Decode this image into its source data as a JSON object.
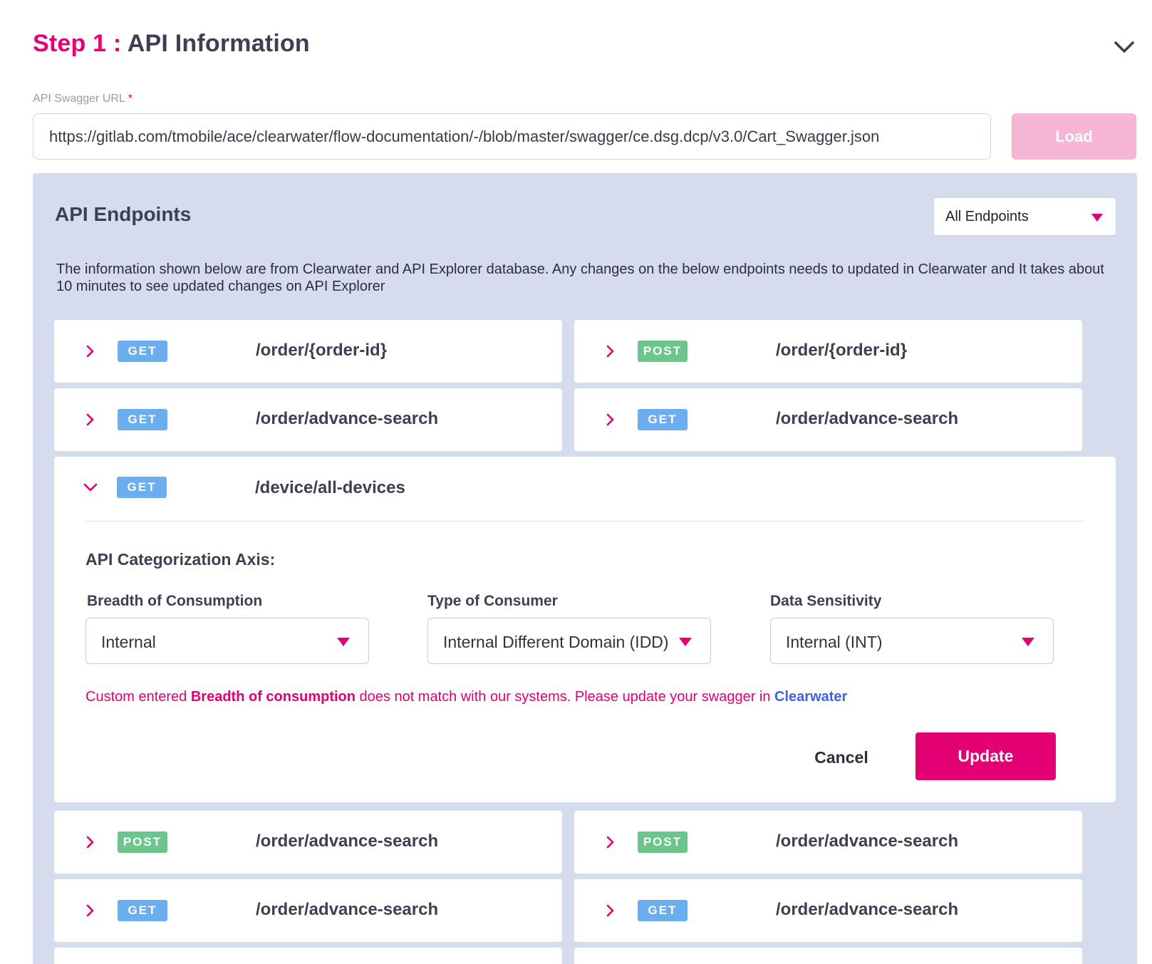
{
  "header": {
    "step_prefix": "Step 1 : ",
    "step_name": "API Information"
  },
  "url_field": {
    "label": "API Swagger URL",
    "required_mark": "*",
    "value": "https://gitlab.com/tmobile/ace/clearwater/flow-documentation/-/blob/master/swagger/ce.dsg.dcp/v3.0/Cart_Swagger.json",
    "load_label": "Load"
  },
  "endpoints": {
    "title": "API Endpoints",
    "filter_value": "All Endpoints",
    "info": "The information shown below are from Clearwater and API Explorer database. Any changes on the below endpoints needs to updated in Clearwater and It takes about 10 minutes to see updated changes on API Explorer",
    "rows_top": [
      {
        "method": "GET",
        "path": "/order/{order-id}"
      },
      {
        "method": "POST",
        "path": "/order/{order-id}"
      },
      {
        "method": "GET",
        "path": "/order/advance-search"
      },
      {
        "method": "GET",
        "path": "/order/advance-search"
      }
    ],
    "expanded": {
      "method": "GET",
      "path": "/device/all-devices",
      "axis_title": "API Categorization Axis:",
      "breadth_label": "Breadth of Consumption",
      "breadth_value": "Internal",
      "consumer_label": "Type of Consumer",
      "consumer_value": "Internal Different Domain (IDD)",
      "sensitivity_label": "Data Sensitivity",
      "sensitivity_value": "Internal (INT)",
      "warning_pre": "Custom entered ",
      "warning_bold": "Breadth of consumption",
      "warning_mid": " does not match with our systems. Please update your swagger in ",
      "warning_link": "Clearwater",
      "cancel_label": "Cancel",
      "update_label": "Update"
    },
    "rows_bottom": [
      {
        "method": "POST",
        "path": "/order/advance-search"
      },
      {
        "method": "POST",
        "path": "/order/advance-search"
      },
      {
        "method": "GET",
        "path": "/order/advance-search"
      },
      {
        "method": "GET",
        "path": "/order/advance-search"
      }
    ]
  },
  "colors": {
    "brand": "#e20074",
    "get": "#6aaef0",
    "post": "#6cc58c",
    "panel": "#d5dced"
  }
}
